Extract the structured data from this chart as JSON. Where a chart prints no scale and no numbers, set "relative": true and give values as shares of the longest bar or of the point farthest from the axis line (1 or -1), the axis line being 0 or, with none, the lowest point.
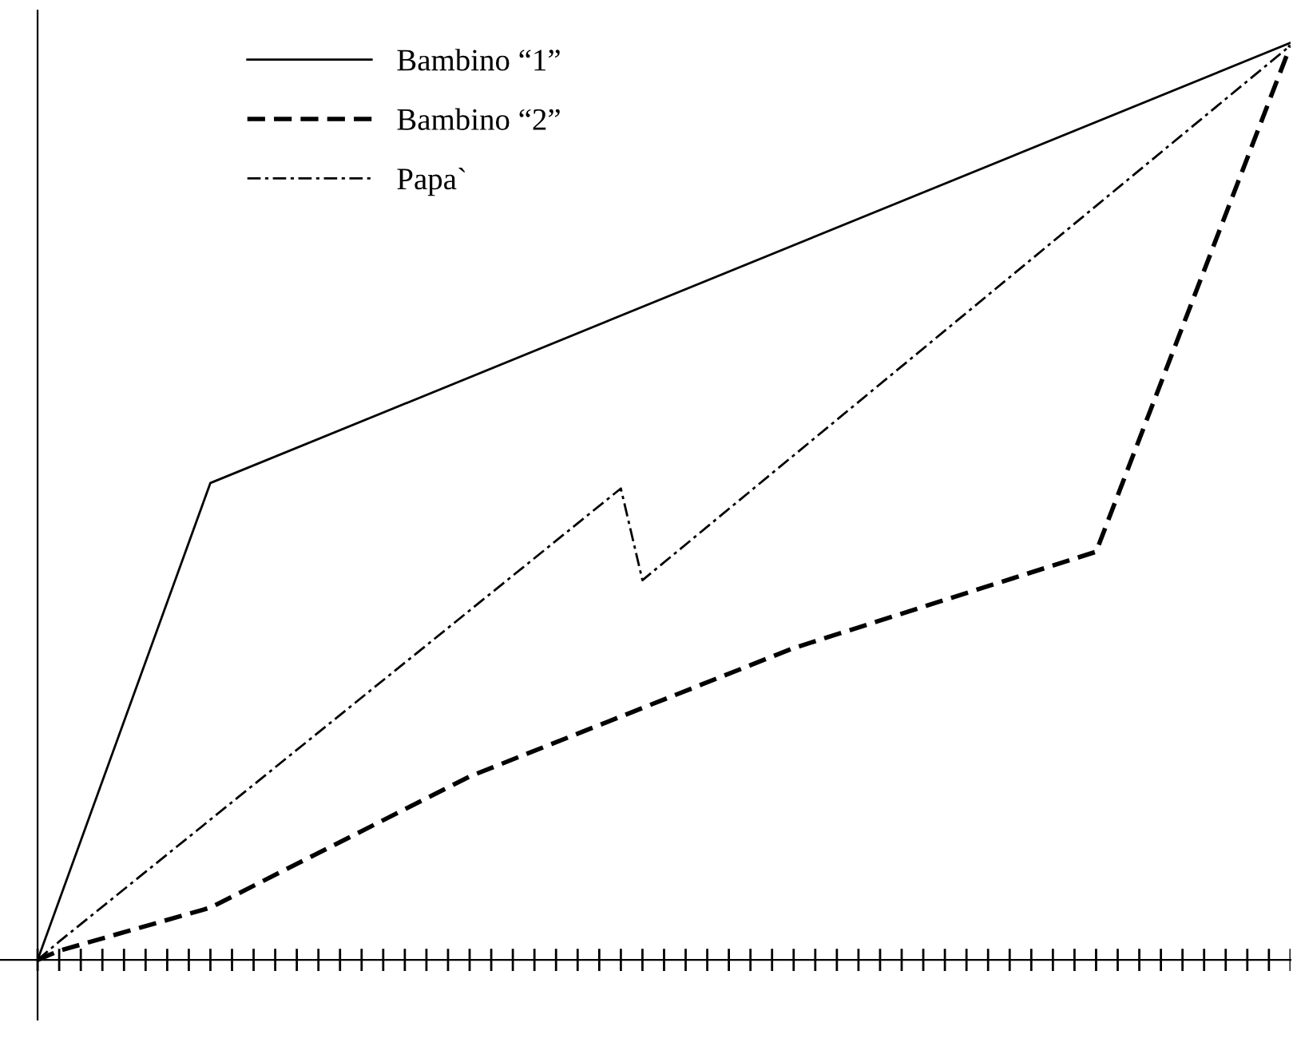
{
  "chart_data": {
    "type": "line",
    "relative": true,
    "legend": "top left",
    "grid": false,
    "marker": "none",
    "categories": [
      null,
      null,
      null,
      null,
      null,
      null,
      null,
      null,
      null,
      null,
      null,
      null,
      null,
      null,
      null,
      null,
      null,
      null,
      null,
      null,
      null,
      null,
      null,
      null,
      null,
      null,
      null,
      null,
      null,
      null,
      null,
      null,
      null,
      null,
      null,
      null,
      null,
      null,
      null,
      null,
      null,
      null,
      null,
      null,
      null,
      null,
      null,
      null,
      null,
      null,
      null,
      null,
      null,
      null,
      null,
      null,
      null,
      null,
      null
    ],
    "series": [
      {
        "name": "Bambino “1”",
        "color": "#000000",
        "line_style": "solid",
        "values": [
          0,
          null,
          null,
          null,
          null,
          null,
          null,
          null,
          0.52,
          null,
          null,
          null,
          null,
          null,
          null,
          null,
          null,
          null,
          null,
          null,
          null,
          null,
          null,
          null,
          null,
          null,
          null,
          null,
          null,
          null,
          null,
          null,
          null,
          null,
          null,
          null,
          null,
          null,
          null,
          null,
          null,
          null,
          null,
          null,
          null,
          null,
          null,
          null,
          null,
          null,
          null,
          null,
          null,
          null,
          null,
          null,
          null,
          null,
          1
        ]
      },
      {
        "name": "Bambino “2”",
        "color": "#000000",
        "line_style": "dashed",
        "values": [
          0,
          0.01,
          null,
          null,
          null,
          null,
          null,
          null,
          0.057,
          null,
          null,
          null,
          null,
          null,
          null,
          null,
          null,
          null,
          null,
          null,
          0.2,
          null,
          null,
          null,
          null,
          null,
          null,
          null,
          null,
          null,
          null,
          null,
          null,
          null,
          null,
          0.34,
          null,
          null,
          null,
          null,
          null,
          null,
          null,
          null,
          null,
          null,
          null,
          null,
          null,
          0.445,
          null,
          null,
          null,
          null,
          null,
          null,
          null,
          null,
          0.997
        ]
      },
      {
        "name": "Papa`",
        "color": "#000000",
        "line_style": "dashdot",
        "values": [
          0,
          0.02,
          null,
          null,
          null,
          null,
          null,
          null,
          null,
          null,
          null,
          null,
          null,
          null,
          null,
          null,
          null,
          null,
          null,
          null,
          null,
          null,
          null,
          null,
          null,
          null,
          null,
          0.514,
          0.414,
          null,
          null,
          null,
          null,
          null,
          null,
          null,
          null,
          null,
          null,
          null,
          null,
          null,
          null,
          null,
          null,
          null,
          null,
          null,
          null,
          null,
          null,
          null,
          null,
          null,
          null,
          null,
          null,
          null,
          0.997
        ]
      }
    ]
  }
}
